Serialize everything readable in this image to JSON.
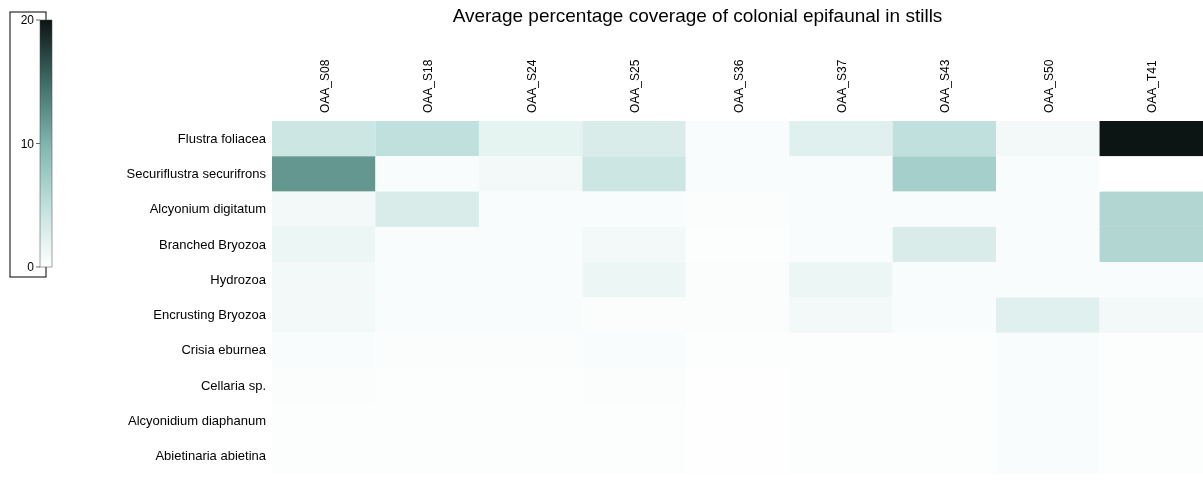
{
  "chart_data": {
    "type": "heatmap",
    "title": "Average percentage coverage of colonial epifaunal in stills",
    "categories": [
      "OAA_S08",
      "OAA_S18",
      "OAA_S24",
      "OAA_S25",
      "OAA_S36",
      "OAA_S37",
      "OAA_S43",
      "OAA_S50",
      "OAA_T41"
    ],
    "y_categories": [
      "Flustra foliacea",
      "Securiflustra securifrons",
      "Alcyonium digitatum",
      "Branched Bryozoa",
      "Hydrozoa",
      "Encrusting Bryozoa",
      "Crisia eburnea",
      "Cellaria sp.",
      "Alcyonidium diaphanum",
      "Abietinaria abietina"
    ],
    "cells": [
      [
        4,
        5,
        2,
        3,
        0.5,
        2.5,
        5,
        1,
        20
      ],
      [
        12,
        0.5,
        1,
        4,
        0.5,
        0.5,
        7,
        0.5,
        0
      ],
      [
        1,
        3,
        0.5,
        0.5,
        0.3,
        0.5,
        0.5,
        0.5,
        6
      ],
      [
        1.5,
        0.5,
        0.5,
        1,
        0.2,
        0.5,
        3,
        0.5,
        6
      ],
      [
        1,
        0.5,
        0.5,
        1.5,
        0.3,
        1.5,
        0.5,
        0.5,
        0.5
      ],
      [
        1,
        0.5,
        0.5,
        0.3,
        0.3,
        1,
        0.5,
        2.5,
        1
      ],
      [
        0.5,
        0.3,
        0.3,
        0.5,
        0.2,
        0.2,
        0.2,
        0.5,
        0.2
      ],
      [
        0.3,
        0.2,
        0.2,
        0.3,
        0.1,
        0.2,
        0.2,
        0.5,
        0.2
      ],
      [
        0.2,
        0.2,
        0.2,
        0.2,
        0.1,
        0.2,
        0.2,
        0.5,
        0.2
      ],
      [
        0.2,
        0.2,
        0.2,
        0.2,
        0.1,
        0.2,
        0.2,
        0.5,
        0.2
      ]
    ],
    "clim": [
      0,
      20
    ],
    "cticks": [
      0,
      10,
      20
    ]
  }
}
